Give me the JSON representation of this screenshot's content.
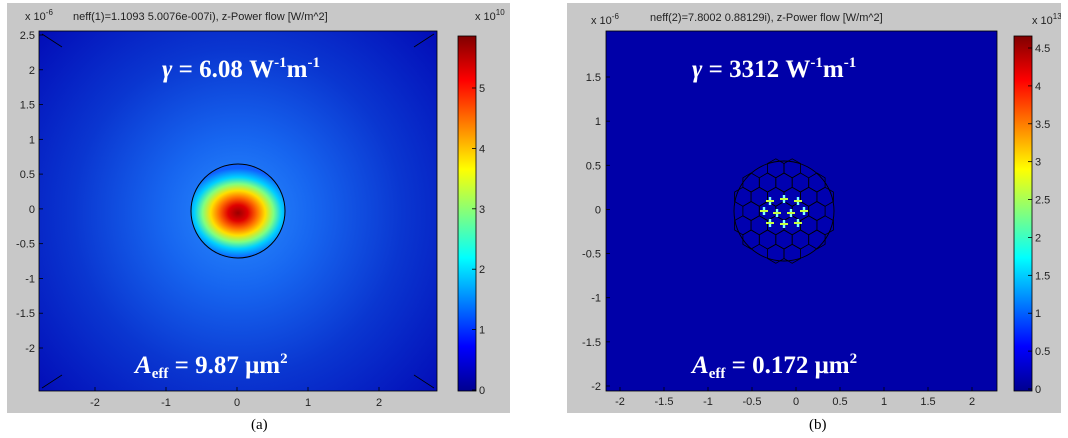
{
  "panel_a": {
    "exponent_label": "x 10",
    "exponent_value": "-6",
    "title": "neff(1)=1.1093 5.0076e-007i),   z-Power flow [W/m^2]",
    "yticks": [
      "2.5",
      "2",
      "1.5",
      "1",
      "0.5",
      "0",
      "-0.5",
      "-1",
      "-1.5",
      "-2"
    ],
    "xticks": [
      "-2",
      "-1",
      "0",
      "1",
      "2"
    ],
    "cbar_exponent_label": "x 10",
    "cbar_exponent_value": "10",
    "cbar_ticks": [
      "5",
      "4",
      "3",
      "2",
      "1",
      "0"
    ],
    "gamma": {
      "symbol": "γ",
      "text": " = 6.08 W",
      "sup1": "-1",
      "unit": "m",
      "sup2": "-1"
    },
    "aeff": {
      "A": "A",
      "sub": "eff",
      "text": " = 9.87 μm",
      "sup": "2"
    },
    "caption": "(a)"
  },
  "panel_b": {
    "exponent_label": "x 10",
    "exponent_value": "-6",
    "title": "neff(2)=7.8002 0.88129i),   z-Power flow [W/m^2]",
    "yticks": [
      "1.5",
      "1",
      "0.5",
      "0",
      "-0.5",
      "-1",
      "-1.5",
      "-2"
    ],
    "xticks": [
      "-2",
      "-1.5",
      "-1",
      "-0.5",
      "0",
      "0.5",
      "1",
      "1.5",
      "2"
    ],
    "cbar_exponent_label": "x 10",
    "cbar_exponent_value": "13",
    "cbar_ticks": [
      "4.5",
      "4",
      "3.5",
      "3",
      "2.5",
      "2",
      "1.5",
      "1",
      "0.5",
      "0"
    ],
    "gamma": {
      "symbol": "γ",
      "text": " = 3312 W",
      "sup1": "-1",
      "unit": "m",
      "sup2": "-1"
    },
    "aeff": {
      "A": "A",
      "sub": "eff",
      "text": " = 0.172 μm",
      "sup": "2"
    },
    "caption": "(b)"
  },
  "colors": {
    "background_field": "#0000a8",
    "frame": "#c8c8c8"
  }
}
